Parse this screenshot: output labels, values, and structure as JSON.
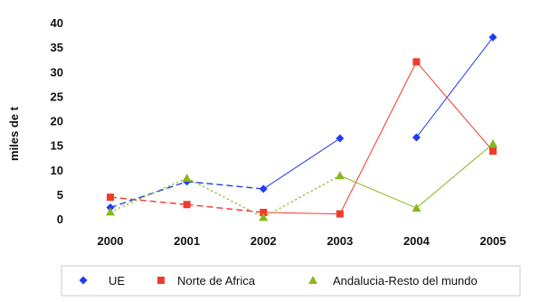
{
  "chart_data": {
    "type": "line",
    "ylabel": "miles de t",
    "xlabel": "",
    "categories": [
      "2000",
      "2001",
      "2002",
      "2003",
      "2004",
      "2005"
    ],
    "yticks": [
      "0",
      "5",
      "10",
      "15",
      "20",
      "25",
      "30",
      "35",
      "40"
    ],
    "ylim": [
      0,
      40
    ],
    "grid": false,
    "legend_position": "bottom",
    "series": [
      {
        "name": "UE",
        "values": [
          2.3,
          7.6,
          6.1,
          16.4,
          16.6,
          37.0
        ],
        "color": "#1f3df0",
        "marker": "diamond",
        "line_style": [
          "dashed",
          "dashed",
          "solid",
          "none",
          "solid"
        ]
      },
      {
        "name": "Norte de Africa",
        "values": [
          4.4,
          2.9,
          1.3,
          1.0,
          32.0,
          13.8
        ],
        "color": "#f23a2c",
        "marker": "square",
        "line_style": [
          "dashed",
          "dashed",
          "solid",
          "solid",
          "solid"
        ]
      },
      {
        "name": "Andalucia-Resto del mundo",
        "values": [
          1.4,
          8.3,
          0.3,
          8.8,
          2.2,
          15.3
        ],
        "color": "#8ab61e",
        "marker": "triangle",
        "line_style": [
          "dotted",
          "dotted",
          "dotted",
          "solid",
          "solid"
        ]
      }
    ]
  }
}
